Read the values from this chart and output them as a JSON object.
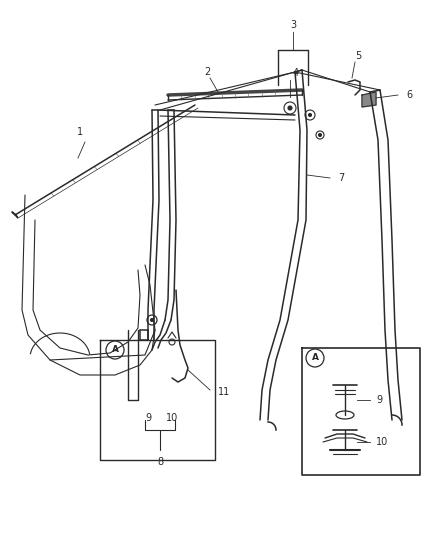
{
  "bg_color": "#ffffff",
  "fig_width": 4.38,
  "fig_height": 5.33,
  "dpi": 100,
  "line_color": "#2a2a2a",
  "label_fontsize": 7.0,
  "lw_main": 0.8,
  "lw_thick": 1.1,
  "lw_thin": 0.5
}
